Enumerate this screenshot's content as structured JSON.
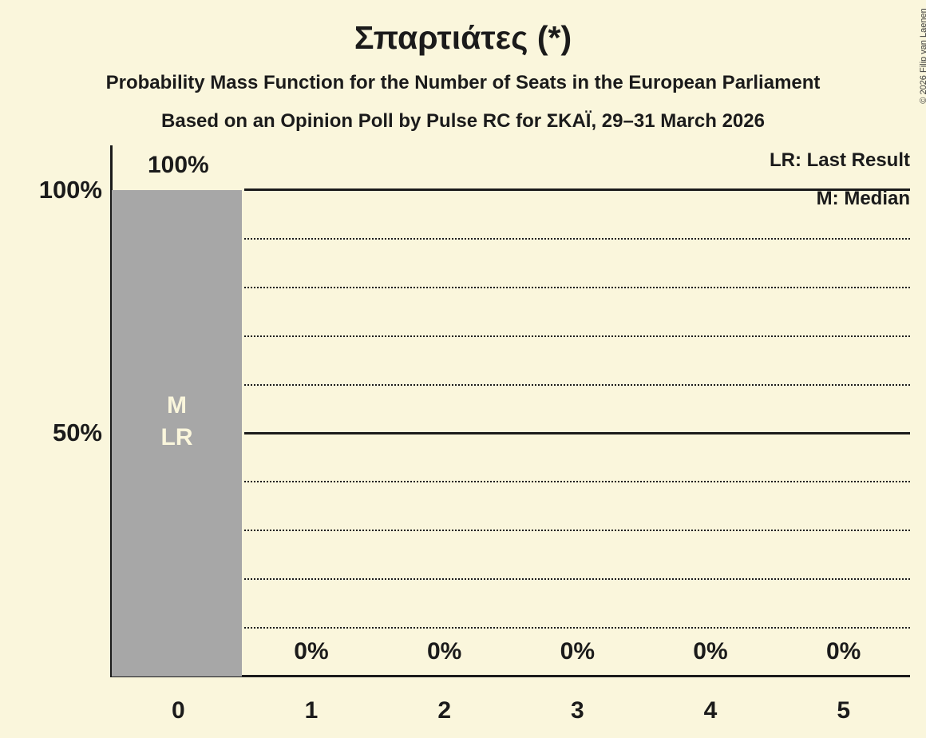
{
  "title": "Σπαρτιάτες (*)",
  "subtitle1": "Probability Mass Function for the Number of Seats in the European Parliament",
  "subtitle2": "Based on an Opinion Poll by Pulse RC for ΣΚΑΪ, 29–31 March 2026",
  "copyright": "© 2026 Filip van Laenen",
  "legend": {
    "lr": "LR: Last Result",
    "m": "M: Median"
  },
  "colors": {
    "background": "#FAF6DC",
    "bar": "#A7A7A7",
    "ink": "#1B1B1B",
    "bar_label": "#FAF6DC"
  },
  "chart_data": {
    "type": "bar",
    "title": "Σπαρτιάτες (*)",
    "categories": [
      "0",
      "1",
      "2",
      "3",
      "4",
      "5"
    ],
    "values": [
      100,
      0,
      0,
      0,
      0,
      0
    ],
    "value_labels": [
      "100%",
      "0%",
      "0%",
      "0%",
      "0%",
      "0%"
    ],
    "bar_inner_labels": [
      [
        "M",
        "LR"
      ],
      [],
      [],
      [],
      [],
      []
    ],
    "median_seats": "0",
    "last_result_seats": "0",
    "y_ticks": [
      "100%",
      "50%"
    ],
    "ylim": [
      0,
      100
    ],
    "gridlines": {
      "solid_percent": [
        100,
        50
      ],
      "dotted_percent": [
        90,
        80,
        70,
        60,
        40,
        30,
        20,
        10
      ]
    },
    "legend_position": "top-right",
    "xlabel": "",
    "ylabel": ""
  }
}
